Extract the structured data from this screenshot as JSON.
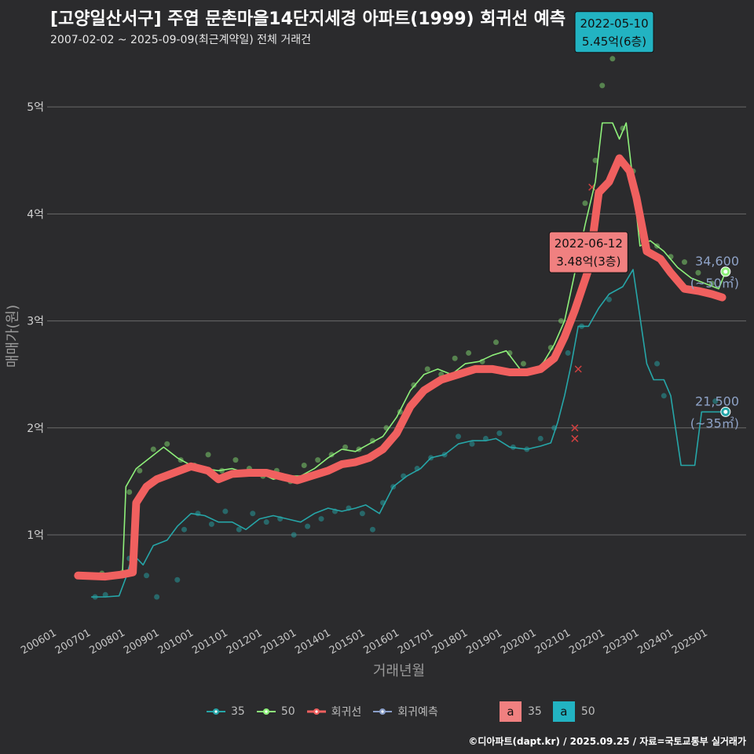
{
  "title": "[고양일산서구] 주엽 문촌마을14단지세경 아파트(1999) 회귀선 예측",
  "subtitle": "2007-02-02 ~ 2025-09-09(최근계약일) 전체 거래건",
  "footer": "©디아파트(dapt.kr) / 2025.09.25 / 자료=국토교통부 실거래가",
  "colors": {
    "bg": "#2b2b2d",
    "grid": "#6a6a6a",
    "s35": "#26a6a8",
    "s50": "#8ef07a",
    "regression": "#f0605f",
    "prediction": "#8a9ec8",
    "label_text": "#8ea2c6"
  },
  "chart_data": {
    "type": "line",
    "title": "[고양일산서구] 주엽 문촌마을14단지세경 아파트(1999) 회귀선 예측",
    "xlabel": "거래년월",
    "ylabel": "매매가(원)",
    "x_ticks": [
      "200601",
      "200701",
      "200801",
      "200901",
      "201001",
      "201101",
      "201201",
      "201301",
      "201401",
      "201501",
      "201601",
      "201701",
      "201801",
      "201901",
      "202001",
      "202101",
      "202201",
      "202301",
      "202401",
      "202501"
    ],
    "y_ticks": [
      {
        "value": 1,
        "label": "1억"
      },
      {
        "value": 2,
        "label": "2억"
      },
      {
        "value": 3,
        "label": "3억"
      },
      {
        "value": 4,
        "label": "4억"
      },
      {
        "value": 5,
        "label": "5억"
      }
    ],
    "ylim": [
      0.2,
      5.5
    ],
    "xlim": [
      2005.8,
      2026.2
    ],
    "unit": "억",
    "grid": true,
    "legend_position": "bottom",
    "series": [
      {
        "name": "35",
        "color": "#26a6a8",
        "kind": "line",
        "points": [
          [
            2007.1,
            0.42
          ],
          [
            2007.5,
            0.42
          ],
          [
            2007.9,
            0.43
          ],
          [
            2008.1,
            0.6
          ],
          [
            2008.3,
            0.82
          ],
          [
            2008.6,
            0.72
          ],
          [
            2008.9,
            0.9
          ],
          [
            2009.3,
            0.95
          ],
          [
            2009.6,
            1.08
          ],
          [
            2010.0,
            1.2
          ],
          [
            2010.4,
            1.18
          ],
          [
            2010.8,
            1.12
          ],
          [
            2011.2,
            1.12
          ],
          [
            2011.6,
            1.05
          ],
          [
            2012.0,
            1.15
          ],
          [
            2012.4,
            1.18
          ],
          [
            2012.8,
            1.15
          ],
          [
            2013.2,
            1.12
          ],
          [
            2013.6,
            1.2
          ],
          [
            2014.0,
            1.25
          ],
          [
            2014.4,
            1.22
          ],
          [
            2014.8,
            1.25
          ],
          [
            2015.1,
            1.28
          ],
          [
            2015.5,
            1.2
          ],
          [
            2015.9,
            1.45
          ],
          [
            2016.3,
            1.55
          ],
          [
            2016.7,
            1.62
          ],
          [
            2017.0,
            1.72
          ],
          [
            2017.4,
            1.75
          ],
          [
            2017.8,
            1.85
          ],
          [
            2018.2,
            1.88
          ],
          [
            2018.6,
            1.88
          ],
          [
            2018.9,
            1.9
          ],
          [
            2019.3,
            1.82
          ],
          [
            2019.8,
            1.8
          ],
          [
            2020.2,
            1.83
          ],
          [
            2020.5,
            1.86
          ],
          [
            2020.7,
            2.05
          ],
          [
            2020.9,
            2.3
          ],
          [
            2021.1,
            2.6
          ],
          [
            2021.3,
            2.95
          ],
          [
            2021.6,
            2.95
          ],
          [
            2021.9,
            3.12
          ],
          [
            2022.2,
            3.25
          ],
          [
            2022.6,
            3.32
          ],
          [
            2022.9,
            3.48
          ],
          [
            2023.3,
            2.6
          ],
          [
            2023.5,
            2.45
          ],
          [
            2023.8,
            2.45
          ],
          [
            2024.0,
            2.3
          ],
          [
            2024.3,
            1.65
          ],
          [
            2024.7,
            1.65
          ],
          [
            2024.9,
            2.15
          ],
          [
            2025.4,
            2.15
          ],
          [
            2025.7,
            2.15
          ]
        ]
      },
      {
        "name": "50",
        "color": "#8ef07a",
        "kind": "line",
        "points": [
          [
            2007.1,
            0.63
          ],
          [
            2007.6,
            0.64
          ],
          [
            2008.0,
            0.65
          ],
          [
            2008.1,
            1.45
          ],
          [
            2008.4,
            1.62
          ],
          [
            2008.8,
            1.72
          ],
          [
            2009.2,
            1.82
          ],
          [
            2009.6,
            1.72
          ],
          [
            2010.0,
            1.65
          ],
          [
            2010.4,
            1.62
          ],
          [
            2010.8,
            1.6
          ],
          [
            2011.2,
            1.62
          ],
          [
            2011.6,
            1.58
          ],
          [
            2012.0,
            1.58
          ],
          [
            2012.4,
            1.52
          ],
          [
            2012.8,
            1.55
          ],
          [
            2013.2,
            1.55
          ],
          [
            2013.6,
            1.62
          ],
          [
            2014.0,
            1.72
          ],
          [
            2014.4,
            1.8
          ],
          [
            2014.8,
            1.78
          ],
          [
            2015.2,
            1.85
          ],
          [
            2015.6,
            1.92
          ],
          [
            2016.0,
            2.1
          ],
          [
            2016.4,
            2.35
          ],
          [
            2016.8,
            2.5
          ],
          [
            2017.2,
            2.55
          ],
          [
            2017.6,
            2.5
          ],
          [
            2018.0,
            2.6
          ],
          [
            2018.4,
            2.62
          ],
          [
            2018.8,
            2.68
          ],
          [
            2019.2,
            2.72
          ],
          [
            2019.6,
            2.55
          ],
          [
            2020.0,
            2.52
          ],
          [
            2020.3,
            2.62
          ],
          [
            2020.6,
            2.78
          ],
          [
            2020.9,
            3.0
          ],
          [
            2021.2,
            3.45
          ],
          [
            2021.5,
            3.9
          ],
          [
            2021.8,
            4.3
          ],
          [
            2022.0,
            4.85
          ],
          [
            2022.3,
            4.85
          ],
          [
            2022.5,
            4.7
          ],
          [
            2022.7,
            4.85
          ],
          [
            2022.9,
            4.3
          ],
          [
            2023.1,
            3.7
          ],
          [
            2023.4,
            3.75
          ],
          [
            2023.8,
            3.65
          ],
          [
            2024.2,
            3.5
          ],
          [
            2024.6,
            3.4
          ],
          [
            2025.0,
            3.35
          ],
          [
            2025.4,
            3.3
          ],
          [
            2025.6,
            3.46
          ]
        ]
      },
      {
        "name": "회귀선",
        "color": "#f0605f",
        "kind": "regression",
        "points": [
          [
            2006.7,
            0.62
          ],
          [
            2007.5,
            0.61
          ],
          [
            2008.0,
            0.63
          ],
          [
            2008.3,
            0.65
          ],
          [
            2008.4,
            1.3
          ],
          [
            2008.7,
            1.45
          ],
          [
            2009.0,
            1.52
          ],
          [
            2009.5,
            1.58
          ],
          [
            2010.0,
            1.64
          ],
          [
            2010.5,
            1.6
          ],
          [
            2010.8,
            1.52
          ],
          [
            2011.2,
            1.57
          ],
          [
            2011.7,
            1.58
          ],
          [
            2012.2,
            1.58
          ],
          [
            2012.7,
            1.54
          ],
          [
            2013.1,
            1.51
          ],
          [
            2013.5,
            1.55
          ],
          [
            2014.0,
            1.6
          ],
          [
            2014.4,
            1.66
          ],
          [
            2014.8,
            1.68
          ],
          [
            2015.2,
            1.72
          ],
          [
            2015.6,
            1.8
          ],
          [
            2016.0,
            1.95
          ],
          [
            2016.4,
            2.2
          ],
          [
            2016.8,
            2.35
          ],
          [
            2017.3,
            2.45
          ],
          [
            2017.8,
            2.5
          ],
          [
            2018.3,
            2.55
          ],
          [
            2018.8,
            2.55
          ],
          [
            2019.3,
            2.52
          ],
          [
            2019.8,
            2.52
          ],
          [
            2020.2,
            2.55
          ],
          [
            2020.6,
            2.65
          ],
          [
            2020.9,
            2.85
          ],
          [
            2021.2,
            3.1
          ],
          [
            2021.6,
            3.48
          ],
          [
            2021.9,
            4.2
          ],
          [
            2022.2,
            4.3
          ],
          [
            2022.5,
            4.52
          ],
          [
            2022.8,
            4.4
          ],
          [
            2023.0,
            4.15
          ],
          [
            2023.3,
            3.65
          ],
          [
            2023.7,
            3.58
          ],
          [
            2024.0,
            3.45
          ],
          [
            2024.4,
            3.3
          ],
          [
            2024.8,
            3.28
          ],
          [
            2025.2,
            3.25
          ],
          [
            2025.5,
            3.22
          ]
        ]
      }
    ],
    "scatter_35": [
      [
        2007.2,
        0.42
      ],
      [
        2007.5,
        0.44
      ],
      [
        2008.2,
        0.78
      ],
      [
        2008.7,
        0.62
      ],
      [
        2009.0,
        0.42
      ],
      [
        2009.6,
        0.58
      ],
      [
        2009.8,
        1.05
      ],
      [
        2010.2,
        1.2
      ],
      [
        2010.6,
        1.1
      ],
      [
        2011.0,
        1.22
      ],
      [
        2011.4,
        1.05
      ],
      [
        2011.8,
        1.2
      ],
      [
        2012.2,
        1.12
      ],
      [
        2012.6,
        1.15
      ],
      [
        2013.0,
        1.0
      ],
      [
        2013.4,
        1.08
      ],
      [
        2013.8,
        1.15
      ],
      [
        2014.2,
        1.22
      ],
      [
        2014.6,
        1.25
      ],
      [
        2015.0,
        1.2
      ],
      [
        2015.3,
        1.05
      ],
      [
        2015.6,
        1.3
      ],
      [
        2015.9,
        1.45
      ],
      [
        2016.2,
        1.55
      ],
      [
        2016.6,
        1.62
      ],
      [
        2017.0,
        1.72
      ],
      [
        2017.4,
        1.75
      ],
      [
        2017.8,
        1.92
      ],
      [
        2018.2,
        1.85
      ],
      [
        2018.6,
        1.9
      ],
      [
        2019.0,
        1.95
      ],
      [
        2019.4,
        1.82
      ],
      [
        2019.8,
        1.8
      ],
      [
        2020.2,
        1.9
      ],
      [
        2020.6,
        2.0
      ],
      [
        2021.0,
        2.7
      ],
      [
        2021.4,
        2.95
      ],
      [
        2022.2,
        3.2
      ],
      [
        2023.6,
        2.6
      ],
      [
        2023.8,
        2.3
      ],
      [
        2025.3,
        2.25
      ]
    ],
    "scatter_50": [
      [
        2007.4,
        0.64
      ],
      [
        2008.0,
        0.65
      ],
      [
        2008.2,
        1.4
      ],
      [
        2008.5,
        1.6
      ],
      [
        2008.9,
        1.8
      ],
      [
        2009.3,
        1.85
      ],
      [
        2009.7,
        1.7
      ],
      [
        2010.1,
        1.65
      ],
      [
        2010.5,
        1.75
      ],
      [
        2010.9,
        1.6
      ],
      [
        2011.3,
        1.7
      ],
      [
        2011.7,
        1.62
      ],
      [
        2012.1,
        1.55
      ],
      [
        2012.5,
        1.6
      ],
      [
        2012.9,
        1.5
      ],
      [
        2013.3,
        1.65
      ],
      [
        2013.7,
        1.7
      ],
      [
        2014.1,
        1.75
      ],
      [
        2014.5,
        1.82
      ],
      [
        2014.9,
        1.8
      ],
      [
        2015.3,
        1.88
      ],
      [
        2015.7,
        2.0
      ],
      [
        2016.1,
        2.15
      ],
      [
        2016.5,
        2.4
      ],
      [
        2016.9,
        2.55
      ],
      [
        2017.3,
        2.5
      ],
      [
        2017.7,
        2.65
      ],
      [
        2018.1,
        2.7
      ],
      [
        2018.5,
        2.62
      ],
      [
        2018.9,
        2.8
      ],
      [
        2019.3,
        2.7
      ],
      [
        2019.7,
        2.6
      ],
      [
        2020.1,
        2.55
      ],
      [
        2020.5,
        2.75
      ],
      [
        2020.8,
        3.0
      ],
      [
        2021.2,
        3.6
      ],
      [
        2021.5,
        4.1
      ],
      [
        2021.8,
        4.5
      ],
      [
        2022.0,
        5.2
      ],
      [
        2022.3,
        5.45
      ],
      [
        2022.6,
        4.8
      ],
      [
        2022.9,
        4.4
      ],
      [
        2023.2,
        3.8
      ],
      [
        2023.6,
        3.7
      ],
      [
        2024.0,
        3.6
      ],
      [
        2024.4,
        3.55
      ],
      [
        2024.8,
        3.45
      ],
      [
        2025.2,
        3.35
      ]
    ],
    "cancelled_points": [
      [
        2021.2,
        2.0
      ],
      [
        2021.2,
        1.9
      ],
      [
        2021.3,
        2.55
      ],
      [
        2021.7,
        4.25
      ]
    ],
    "annotations": [
      {
        "date": "2022-05-10",
        "price": "5.45억(6층)",
        "x": 2022.35,
        "y": 5.45,
        "color": "#22b3c2"
      },
      {
        "date": "2022-06-12",
        "price": "3.48억(3층)",
        "x": 2021.6,
        "y": 3.48,
        "color": "#f08080"
      }
    ],
    "end_labels": [
      {
        "series": "50",
        "value": "34,600",
        "area": "(~50㎡)",
        "x": 2025.6,
        "y": 3.46
      },
      {
        "series": "35",
        "value": "21,500",
        "area": "(~35㎡)",
        "x": 2025.6,
        "y": 2.15
      }
    ]
  },
  "legend": {
    "lines": [
      {
        "label": "35",
        "color": "#26a6a8"
      },
      {
        "label": "50",
        "color": "#8ef07a"
      },
      {
        "label": "회귀선",
        "color": "#f0605f"
      },
      {
        "label": "회귀예측",
        "color": "#8a9ec8"
      }
    ],
    "boxes": [
      {
        "glyph": "a",
        "label": "35",
        "color": "#f08080"
      },
      {
        "glyph": "a",
        "label": "50",
        "color": "#22b3c2"
      }
    ]
  }
}
